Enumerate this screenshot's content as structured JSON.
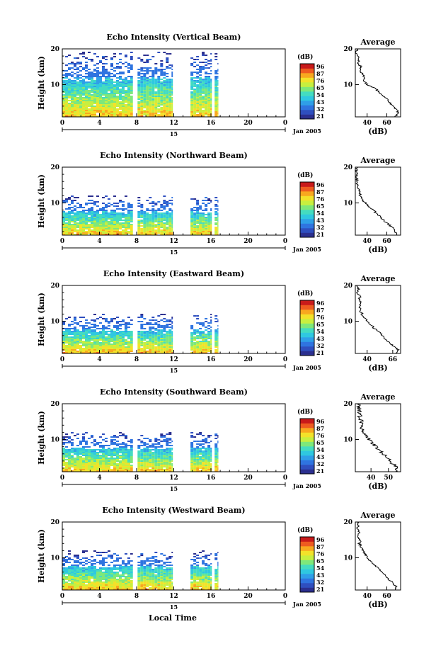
{
  "colormap": [
    "#2b2f8f",
    "#2f4fbf",
    "#2f74e0",
    "#2f9fe8",
    "#2fc8e0",
    "#44dcc0",
    "#7ee87a",
    "#c8ef3f",
    "#f3e22a",
    "#f8a81f",
    "#ee5b20",
    "#c81a1a"
  ],
  "colorbar": {
    "label": "(dB)",
    "ticks": [
      "96",
      "87",
      "76",
      "65",
      "54",
      "43",
      "32",
      "21"
    ]
  },
  "date_label": "Jan 2005",
  "day_label": "15",
  "xlabel_bottom": "Local Time",
  "chart_data": [
    {
      "type": "heatmap",
      "title": "Echo Intensity (Vertical Beam)",
      "ylabel": "Height (km)",
      "xlim": [
        0,
        24
      ],
      "ylim": [
        1,
        20
      ],
      "x_ticks": [
        "0",
        "4",
        "8",
        "12",
        "16",
        "20",
        "0"
      ],
      "y_ticks": [
        "20",
        "10"
      ],
      "data_segments": [
        [
          0,
          7.6
        ],
        [
          8.1,
          11.9
        ],
        [
          13.8,
          16.1
        ],
        [
          16.4,
          16.8
        ]
      ],
      "top_of_data_km": 19,
      "profile": {
        "title": "Average",
        "xlabel": "(dB)",
        "x_ticks": [
          "40",
          "60"
        ],
        "xlim": [
          28,
          74
        ],
        "heights_km": [
          1,
          2,
          3,
          4,
          5,
          6,
          7,
          8,
          9,
          10,
          11,
          12,
          13,
          14,
          15,
          16,
          17,
          18,
          19,
          20
        ],
        "values_db": [
          68,
          72,
          70,
          66,
          63,
          60,
          56,
          52,
          48,
          40,
          37,
          38,
          35,
          33,
          34,
          30,
          32,
          30,
          29,
          31
        ]
      }
    },
    {
      "type": "heatmap",
      "title": "Echo Intensity (Northward Beam)",
      "ylabel": "Height (km)",
      "xlim": [
        0,
        24
      ],
      "ylim": [
        1,
        20
      ],
      "x_ticks": [
        "0",
        "4",
        "8",
        "12",
        "16",
        "20",
        "0"
      ],
      "y_ticks": [
        "20",
        "10"
      ],
      "data_segments": [
        [
          0,
          7.6
        ],
        [
          8.1,
          11.9
        ],
        [
          13.8,
          16.1
        ],
        [
          16.4,
          16.8
        ]
      ],
      "top_of_data_km": 12,
      "profile": {
        "title": "Average",
        "xlabel": "(dB)",
        "x_ticks": [
          "40",
          "60"
        ],
        "xlim": [
          28,
          74
        ],
        "heights_km": [
          1,
          2,
          3,
          4,
          5,
          6,
          7,
          8,
          9,
          10,
          11,
          12,
          13,
          14,
          15,
          16,
          17,
          18,
          19,
          20
        ],
        "values_db": [
          70,
          68,
          66,
          62,
          57,
          54,
          50,
          46,
          42,
          38,
          35,
          33,
          32,
          31,
          30,
          30,
          29,
          30,
          29,
          30
        ]
      }
    },
    {
      "type": "heatmap",
      "title": "Echo Intensity (Eastward Beam)",
      "ylabel": "Height (km)",
      "xlim": [
        0,
        24
      ],
      "ylim": [
        1,
        20
      ],
      "x_ticks": [
        "0",
        "4",
        "8",
        "12",
        "16",
        "20",
        "0"
      ],
      "y_ticks": [
        "20",
        "10"
      ],
      "data_segments": [
        [
          0,
          7.6
        ],
        [
          8.1,
          11.9
        ],
        [
          13.8,
          16.1
        ],
        [
          16.4,
          16.8
        ]
      ],
      "top_of_data_km": 12,
      "profile": {
        "title": "Average",
        "xlabel": "(dB)",
        "x_ticks": [
          "40",
          "66"
        ],
        "xlim": [
          28,
          74
        ],
        "heights_km": [
          1,
          2,
          3,
          4,
          5,
          6,
          7,
          8,
          9,
          10,
          11,
          12,
          13,
          14,
          15,
          16,
          17,
          18,
          19,
          20
        ],
        "values_db": [
          70,
          72,
          67,
          63,
          59,
          55,
          52,
          47,
          44,
          40,
          37,
          35,
          33,
          32,
          34,
          31,
          33,
          30,
          31,
          30
        ]
      }
    },
    {
      "type": "heatmap",
      "title": "Echo Intensity (Southward Beam)",
      "ylabel": "Height (km)",
      "xlim": [
        0,
        24
      ],
      "ylim": [
        1,
        20
      ],
      "x_ticks": [
        "0",
        "4",
        "8",
        "12",
        "16",
        "20",
        "0"
      ],
      "y_ticks": [
        "20",
        "10"
      ],
      "data_segments": [
        [
          0,
          7.6
        ],
        [
          8.1,
          11.9
        ],
        [
          13.8,
          16.1
        ],
        [
          16.4,
          16.8
        ]
      ],
      "top_of_data_km": 12,
      "profile": {
        "title": "Average",
        "xlabel": "(dB)",
        "x_ticks": [
          "40",
          "50"
        ],
        "xlim": [
          31,
          57
        ],
        "heights_km": [
          1,
          2,
          3,
          4,
          5,
          6,
          7,
          8,
          9,
          10,
          11,
          12,
          13,
          14,
          15,
          16,
          17,
          18,
          19,
          20
        ],
        "values_db": [
          54,
          55,
          53,
          51,
          49,
          47,
          45,
          43,
          41,
          39,
          37,
          36,
          35,
          34,
          35,
          33,
          34,
          33,
          33,
          33
        ]
      }
    },
    {
      "type": "heatmap",
      "title": "Echo Intensity (Westward Beam)",
      "ylabel": "Height (km)",
      "xlim": [
        0,
        24
      ],
      "ylim": [
        1,
        20
      ],
      "x_ticks": [
        "0",
        "4",
        "8",
        "12",
        "16",
        "20",
        "0"
      ],
      "y_ticks": [
        "20",
        "10"
      ],
      "data_segments": [
        [
          0,
          7.6
        ],
        [
          8.1,
          11.9
        ],
        [
          13.8,
          16.1
        ],
        [
          16.4,
          16.8
        ]
      ],
      "top_of_data_km": 12,
      "profile": {
        "title": "Average",
        "xlabel": "(dB)",
        "x_ticks": [
          "40",
          "60"
        ],
        "xlim": [
          28,
          74
        ],
        "heights_km": [
          1,
          2,
          3,
          4,
          5,
          6,
          7,
          8,
          9,
          10,
          11,
          12,
          13,
          14,
          15,
          16,
          17,
          18,
          19,
          20
        ],
        "values_db": [
          70,
          69,
          66,
          62,
          58,
          55,
          51,
          48,
          44,
          40,
          38,
          36,
          34,
          32,
          33,
          31,
          32,
          30,
          31,
          30
        ]
      }
    }
  ]
}
